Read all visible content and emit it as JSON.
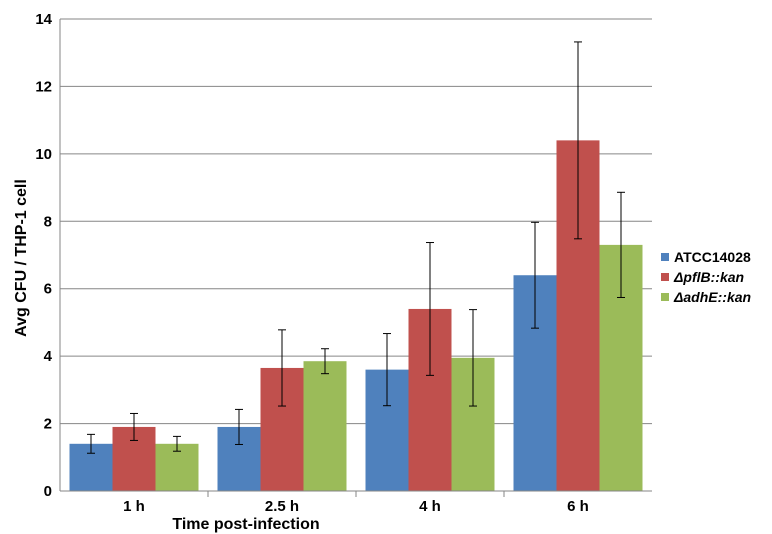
{
  "chart_data": {
    "type": "bar",
    "title": "",
    "xlabel": "Time post-infection",
    "ylabel": "Avg CFU / THP-1 cell",
    "ylim": [
      0,
      14
    ],
    "yticks": [
      0,
      2,
      4,
      6,
      8,
      10,
      12,
      14
    ],
    "grid": true,
    "legend_position": "right",
    "categories": [
      "1 h",
      "2.5 h",
      "4 h",
      "6 h"
    ],
    "series": [
      {
        "name": "ATCC14028",
        "color": "#4f81bd",
        "values": [
          1.4,
          1.9,
          3.6,
          6.4
        ],
        "errors": [
          0.28,
          0.52,
          1.07,
          1.57
        ]
      },
      {
        "name": "ΔpflB::kan",
        "color": "#c0504d",
        "values": [
          1.9,
          3.65,
          5.4,
          10.4
        ],
        "errors": [
          0.4,
          1.13,
          1.97,
          2.92
        ]
      },
      {
        "name": "ΔadhE::kan",
        "color": "#9bbb59",
        "values": [
          1.4,
          3.85,
          3.95,
          7.3
        ],
        "errors": [
          0.22,
          0.37,
          1.43,
          1.56
        ]
      }
    ]
  }
}
